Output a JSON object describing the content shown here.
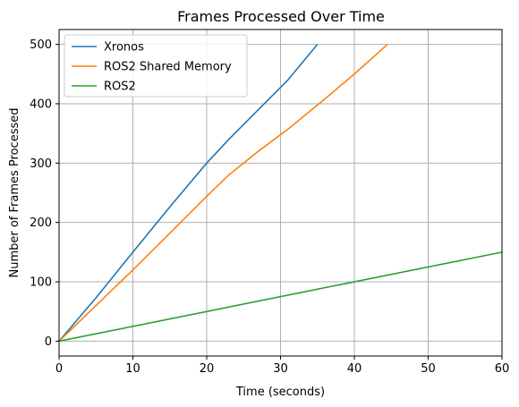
{
  "chart_data": {
    "type": "line",
    "title": "Frames Processed Over Time",
    "xlabel": "Time (seconds)",
    "ylabel": "Number of Frames Processed",
    "xlim": [
      0,
      60
    ],
    "ylim": [
      -25,
      525
    ],
    "xticks": [
      0,
      10,
      20,
      30,
      40,
      50,
      60
    ],
    "yticks": [
      0,
      100,
      200,
      300,
      400,
      500
    ],
    "grid": true,
    "legend_position": "top-left",
    "series": [
      {
        "name": "Xronos",
        "color": "#1f77b4",
        "x": [
          0,
          5,
          10,
          15,
          20,
          23,
          27,
          31,
          35
        ],
        "y": [
          0,
          73,
          150,
          226,
          300,
          340,
          390,
          440,
          500
        ]
      },
      {
        "name": "ROS2 Shared Memory",
        "color": "#ff7f0e",
        "x": [
          0,
          5,
          10,
          15,
          20,
          23,
          27,
          31,
          36,
          40,
          44.5
        ],
        "y": [
          0,
          60,
          120,
          182,
          244,
          280,
          320,
          357,
          408,
          450,
          500
        ]
      },
      {
        "name": "ROS2",
        "color": "#2ca02c",
        "x": [
          0,
          60
        ],
        "y": [
          0,
          150
        ]
      }
    ]
  }
}
